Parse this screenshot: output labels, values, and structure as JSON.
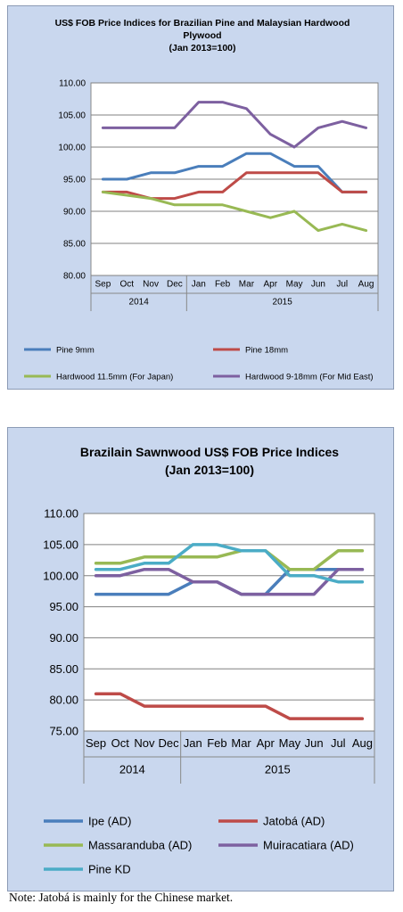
{
  "chart_data": [
    {
      "type": "line",
      "title": "US$ FOB Price Indices for Brazilian Pine and Malaysian Hardwood",
      "title2": "Plywood",
      "subtitle": "(Jan 2013=100)",
      "categories": [
        "Sep",
        "Oct",
        "Nov",
        "Dec",
        "Jan",
        "Feb",
        "Mar",
        "Apr",
        "May",
        "Jun",
        "Jul",
        "Aug"
      ],
      "year_groups": [
        {
          "label": "2014",
          "span": 4
        },
        {
          "label": "2015",
          "span": 8
        }
      ],
      "ylim": [
        80,
        110
      ],
      "yticks": [
        "80.00",
        "85.00",
        "90.00",
        "95.00",
        "100.00",
        "105.00",
        "110.00"
      ],
      "grid": true,
      "legend_position": "bottom",
      "series": [
        {
          "name": "Pine 9mm",
          "color": "#4a7ebb",
          "values": [
            95,
            95,
            96,
            96,
            97,
            97,
            99,
            99,
            97,
            97,
            93,
            93
          ]
        },
        {
          "name": "Pine 18mm",
          "color": "#be4b48",
          "values": [
            93,
            93,
            92,
            92,
            93,
            93,
            96,
            96,
            96,
            96,
            93,
            93
          ]
        },
        {
          "name": "Hardwood 11.5mm (For Japan)",
          "color": "#98b954",
          "values": [
            93,
            92.5,
            92,
            91,
            91,
            91,
            90,
            89,
            90,
            87,
            88,
            87
          ]
        },
        {
          "name": "Hardwood 9-18mm (For Mid East)",
          "color": "#7d60a0",
          "values": [
            103,
            103,
            103,
            103,
            107,
            107,
            106,
            102,
            100,
            103,
            104,
            103
          ]
        }
      ]
    },
    {
      "type": "line",
      "title": "Brazilain Sawnwood US$ FOB Price Indices",
      "subtitle": "(Jan 2013=100)",
      "categories": [
        "Sep",
        "Oct",
        "Nov",
        "Dec",
        "Jan",
        "Feb",
        "Mar",
        "Apr",
        "May",
        "Jun",
        "Jul",
        "Aug"
      ],
      "year_groups": [
        {
          "label": "2014",
          "span": 4
        },
        {
          "label": "2015",
          "span": 8
        }
      ],
      "ylim": [
        75,
        110
      ],
      "yticks": [
        "75.00",
        "80.00",
        "85.00",
        "90.00",
        "95.00",
        "100.00",
        "105.00",
        "110.00"
      ],
      "grid": true,
      "legend_position": "bottom",
      "series": [
        {
          "name": "Ipe (AD)",
          "color": "#4a7ebb",
          "values": [
            97,
            97,
            97,
            97,
            99,
            99,
            97,
            97,
            101,
            101,
            101,
            101
          ]
        },
        {
          "name": "Jatobá (AD)",
          "color": "#be4b48",
          "values": [
            81,
            81,
            79,
            79,
            79,
            79,
            79,
            79,
            77,
            77,
            77,
            77
          ]
        },
        {
          "name": "Massaranduba (AD)",
          "color": "#98b954",
          "values": [
            102,
            102,
            103,
            103,
            103,
            103,
            104,
            104,
            101,
            101,
            104,
            104
          ]
        },
        {
          "name": "Muiracatiara (AD)",
          "color": "#7d60a0",
          "values": [
            100,
            100,
            101,
            101,
            99,
            99,
            97,
            97,
            97,
            97,
            101,
            101
          ]
        },
        {
          "name": "Pine KD",
          "color": "#4bacc6",
          "values": [
            101,
            101,
            102,
            102,
            105,
            105,
            104,
            104,
            100,
            100,
            99,
            99
          ]
        }
      ]
    }
  ],
  "note": "Note: Jatobá is mainly for the Chinese market."
}
